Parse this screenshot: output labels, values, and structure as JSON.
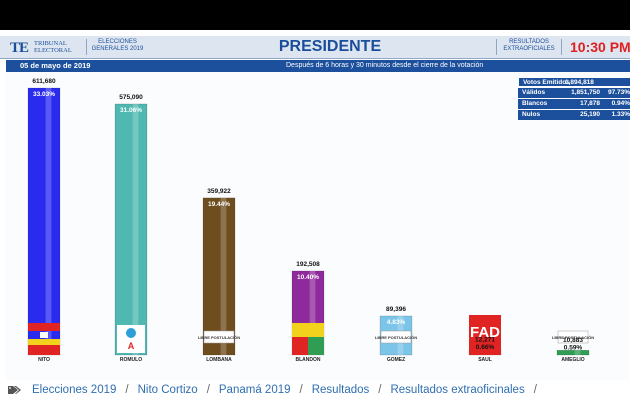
{
  "header": {
    "logo_initials": "TE",
    "logo_name_line1": "TRIBUNAL",
    "logo_name_line2": "ELECTORAL",
    "elections_line1": "ELECCIONES",
    "elections_line2": "GENERALES 2019",
    "title": "PRESIDENTE",
    "results_line1": "RESULTADOS",
    "results_line2": "EXTRAOFICIALES",
    "time": "10:30 PM"
  },
  "subheader": {
    "date": "05 de mayo de 2019",
    "note": "Después de 6 horas y 30 minutos desde el cierre de la votación"
  },
  "stats": [
    {
      "label": "Votos Emitidos",
      "value": "1,894,818",
      "pct": ""
    },
    {
      "label": "Válidos",
      "value": "1,851,750",
      "pct": "97.73%"
    },
    {
      "label": "Blancos",
      "value": "17,878",
      "pct": "0.94%"
    },
    {
      "label": "Nulos",
      "value": "25,190",
      "pct": "1.33%"
    }
  ],
  "chart_data": {
    "type": "bar",
    "title": "PRESIDENTE",
    "categories": [
      "NITO",
      "ROMULO",
      "LOMBANA",
      "BLANDON",
      "GOMEZ",
      "SAUL",
      "AMEGLIO"
    ],
    "values": [
      611680,
      575090,
      359922,
      192508,
      89396,
      12271,
      10883
    ],
    "value_labels": [
      "611,680",
      "575,090",
      "359,922",
      "192,508",
      "89,396",
      "12,271",
      "10,883"
    ],
    "percent_labels": [
      "33.03%",
      "31.06%",
      "19.44%",
      "10.40%",
      "4.83%",
      "0.66%",
      "0.59%"
    ],
    "colors": [
      "#2b2bf0",
      "#4fb8b0",
      "#6e4e1e",
      "#8f2a9c",
      "#7cc4e8",
      "#e02424",
      "#2f9e52"
    ],
    "ylim": [
      0,
      611680
    ],
    "party_logos": [
      "party-logo-prd-molirena",
      "party-logo-cd",
      "party-logo-libre-postulacion",
      "party-logo-panamenista-popular",
      "party-logo-libre-postulacion",
      "party-logo-fad",
      "party-logo-libre-postulacion"
    ],
    "logo_text": [
      "",
      "A",
      "LIBRE POSTULACIÓN",
      "",
      "LIBRE POSTULACIÓN",
      "FAD",
      "LIBRE POSTULACIÓN"
    ]
  },
  "breadcrumb": [
    "Elecciones 2019",
    "Nito Cortizo",
    "Panamá 2019",
    "Resultados",
    "Resultados extraoficinales",
    "/"
  ]
}
